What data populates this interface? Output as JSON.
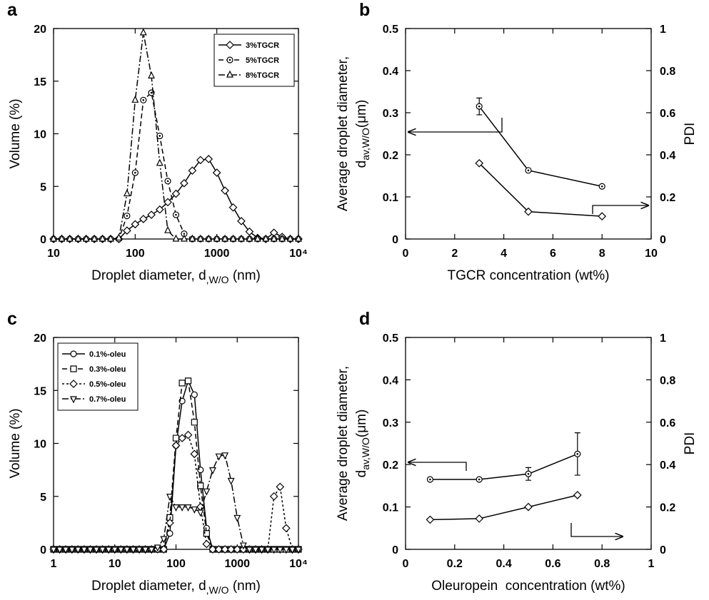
{
  "chart_data": [
    {
      "type": "line",
      "panel": "a",
      "log_x": true,
      "xlabel": {
        "text": "Droplet diameter, d",
        "sub": ",W/O",
        "unit": " (nm)"
      },
      "ylabel": "Volume (%)",
      "xlim": [
        10,
        10000
      ],
      "xticks": [
        10,
        100,
        1000,
        {
          "value": 10000,
          "label": "10⁴"
        }
      ],
      "ylim": [
        0,
        20
      ],
      "yticks": [
        0,
        5,
        10,
        15,
        20
      ],
      "legend": "upper right",
      "x": [
        10,
        12.6,
        15.8,
        20,
        25.1,
        31.6,
        39.8,
        50.1,
        63.1,
        79.4,
        100,
        126,
        158,
        200,
        251,
        316,
        398,
        501,
        631,
        794,
        1000,
        1259,
        1585,
        1995,
        2512,
        3162,
        3981,
        5012,
        6310,
        7943,
        10000
      ],
      "series": [
        {
          "name": "3%TGCR",
          "color": "#000000",
          "marker": "diamond",
          "dash": "solid",
          "values": [
            0,
            0,
            0,
            0,
            0,
            0,
            0,
            0,
            0,
            0.8,
            1.4,
            1.9,
            2.3,
            2.8,
            3.5,
            4.3,
            5.3,
            6.5,
            7.5,
            7.6,
            6.3,
            4.6,
            3.0,
            1.7,
            0.7,
            0.1,
            0,
            0.6,
            0.2,
            0,
            0
          ]
        },
        {
          "name": "5%TGCR",
          "color": "#000000",
          "marker": "circle-dot",
          "dash": "dashed",
          "values": [
            0,
            0,
            0,
            0,
            0,
            0,
            0,
            0,
            0,
            2.2,
            6.3,
            13.2,
            13.9,
            9.8,
            5.5,
            2.3,
            0.5,
            0,
            0,
            0,
            0,
            0,
            0,
            0,
            0,
            0,
            0,
            0,
            0,
            0,
            0
          ]
        },
        {
          "name": "8%TGCR",
          "color": "#000000",
          "marker": "triangle",
          "dash": "dashdot",
          "values": [
            0,
            0,
            0,
            0,
            0,
            0,
            0,
            0,
            0.1,
            4.3,
            13.2,
            19.6,
            15.5,
            7.2,
            0.8,
            0,
            0,
            0,
            0,
            0,
            0,
            0,
            0,
            0,
            0,
            0,
            0,
            0,
            0,
            0,
            0
          ]
        }
      ]
    },
    {
      "type": "line",
      "panel": "b",
      "log_x": false,
      "xlabel": {
        "text": "TGCR concentration (wt%)"
      },
      "ylabel": {
        "main": "Average droplet diameter,",
        "symbol": "d",
        "sub": "av,W/O",
        "unit": "(μm)"
      },
      "y2label": "PDI",
      "xlim": [
        0,
        10
      ],
      "xticks": [
        0,
        2,
        4,
        6,
        8,
        10
      ],
      "ylim": [
        0,
        0.5
      ],
      "yticks": [
        0,
        0.1,
        0.2,
        0.3,
        0.4,
        0.5
      ],
      "y2lim": [
        0,
        1
      ],
      "y2ticks": [
        0,
        0.2,
        0.4,
        0.6,
        0.8,
        1
      ],
      "x": [
        3,
        5,
        8
      ],
      "series": [
        {
          "color": "#000000",
          "marker": "circle-dot",
          "dash": "solid",
          "axis": "y",
          "values": [
            0.315,
            0.163,
            0.125
          ],
          "errors": [
            0.02,
            null,
            null
          ]
        },
        {
          "color": "#000000",
          "marker": "diamond",
          "dash": "solid",
          "axis": "y2",
          "values": [
            0.36,
            0.13,
            0.108
          ]
        }
      ]
    },
    {
      "type": "line",
      "panel": "c",
      "log_x": true,
      "xlabel": {
        "text": "Droplet diameter, d",
        "sub": ",W/O",
        "unit": " (nm)"
      },
      "ylabel": "Volume (%)",
      "xlim": [
        1,
        10000
      ],
      "xticks": [
        1,
        10,
        100,
        1000,
        {
          "value": 10000,
          "label": "10⁴"
        }
      ],
      "ylim": [
        0,
        20
      ],
      "yticks": [
        0,
        5,
        10,
        15,
        20
      ],
      "legend": "upper left",
      "x": [
        1,
        1.26,
        1.58,
        2,
        2.51,
        3.16,
        3.98,
        5.01,
        6.31,
        7.94,
        10,
        12.6,
        15.8,
        20,
        25.1,
        31.6,
        39.8,
        50.1,
        63.1,
        79.4,
        100,
        126,
        158,
        200,
        251,
        316,
        398,
        501,
        631,
        794,
        1000,
        1259,
        1585,
        1995,
        2512,
        3162,
        3981,
        5012,
        6310,
        7943,
        10000
      ],
      "series": [
        {
          "name": "0.1%-oleu",
          "color": "#000000",
          "marker": "circle",
          "dash": "solid",
          "values": [
            0,
            0,
            0,
            0,
            0,
            0,
            0,
            0,
            0,
            0,
            0,
            0,
            0,
            0,
            0,
            0,
            0,
            0,
            0,
            1.5,
            9.8,
            14.0,
            15.9,
            14.6,
            7.5,
            2.0,
            0,
            0,
            0,
            0,
            0,
            0,
            0,
            0,
            0,
            0,
            0,
            0,
            0,
            0,
            0
          ]
        },
        {
          "name": "0.3%-oleu",
          "color": "#000000",
          "marker": "square",
          "dash": "dashed",
          "values": [
            0,
            0,
            0,
            0,
            0,
            0,
            0,
            0,
            0,
            0,
            0,
            0,
            0,
            0,
            0,
            0,
            0,
            0,
            0,
            3.0,
            10.5,
            15.7,
            15.9,
            12.0,
            6.0,
            1.5,
            0,
            0,
            0,
            0,
            0,
            0,
            0,
            0,
            0,
            0,
            0,
            0,
            0,
            0,
            0
          ]
        },
        {
          "name": "0.5%-oleu",
          "color": "#000000",
          "marker": "diamond",
          "dash": "dotted",
          "values": [
            0,
            0,
            0,
            0,
            0,
            0,
            0,
            0,
            0,
            0,
            0,
            0,
            0,
            0,
            0,
            0,
            0,
            0,
            0,
            2.5,
            9.8,
            10.5,
            10.8,
            9.0,
            4.0,
            0.5,
            0,
            0,
            0,
            0,
            0,
            0,
            0,
            0,
            0,
            0,
            5.0,
            5.9,
            2.0,
            0,
            0
          ]
        },
        {
          "name": "0.7%-oleu",
          "color": "#000000",
          "marker": "triangle-down",
          "dash": "dashdot",
          "values": [
            0,
            0,
            0,
            0,
            0,
            0,
            0,
            0,
            0,
            0,
            0,
            0,
            0,
            0,
            0,
            0,
            0,
            0.2,
            1.0,
            5.0,
            4.0,
            4.0,
            4.0,
            3.8,
            3.5,
            5.5,
            7.5,
            8.8,
            8.9,
            6.5,
            3.0,
            0.4,
            0,
            0,
            0,
            0,
            0,
            0,
            0,
            0,
            0
          ]
        }
      ]
    },
    {
      "type": "line",
      "panel": "d",
      "log_x": false,
      "xlabel": {
        "text": "Oleuropein  concentration (wt%)"
      },
      "ylabel": {
        "main": "Average droplet diameter,",
        "symbol": "d",
        "sub": "av,W/O",
        "unit": "(μm)"
      },
      "y2label": "PDI",
      "xlim": [
        0,
        1
      ],
      "xticks": [
        0,
        0.2,
        0.4,
        0.6,
        0.8,
        1
      ],
      "ylim": [
        0,
        0.5
      ],
      "yticks": [
        0,
        0.1,
        0.2,
        0.3,
        0.4,
        0.5
      ],
      "y2lim": [
        0,
        1
      ],
      "y2ticks": [
        0,
        0.2,
        0.4,
        0.6,
        0.8,
        1
      ],
      "x": [
        0.1,
        0.3,
        0.5,
        0.7
      ],
      "series": [
        {
          "color": "#000000",
          "marker": "circle-dot",
          "dash": "solid",
          "axis": "y",
          "values": [
            0.165,
            0.165,
            0.178,
            0.225
          ],
          "errors": [
            null,
            null,
            0.015,
            0.05
          ]
        },
        {
          "color": "#000000",
          "marker": "diamond",
          "dash": "solid",
          "axis": "y2",
          "values": [
            0.14,
            0.145,
            0.2,
            0.256
          ]
        }
      ]
    }
  ]
}
